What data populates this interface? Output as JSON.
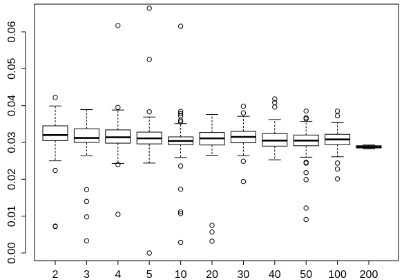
{
  "chart_data": {
    "type": "boxplot",
    "title": "",
    "xlabel": "",
    "ylabel": "",
    "categories": [
      "2",
      "3",
      "4",
      "5",
      "10",
      "20",
      "30",
      "40",
      "50",
      "100",
      "200"
    ],
    "ylim": [
      -0.002,
      0.068
    ],
    "yticks": [
      0.0,
      0.01,
      0.02,
      0.03,
      0.04,
      0.05,
      0.06
    ],
    "ytick_labels": [
      "0.00",
      "0.01",
      "0.02",
      "0.03",
      "0.04",
      "0.05",
      "0.06"
    ],
    "grid": false,
    "boxes": [
      {
        "category": "2",
        "whisker_low": 0.025,
        "q1": 0.0305,
        "median": 0.032,
        "q3": 0.0345,
        "whisker_high": 0.0399,
        "outliers": [
          0.0422,
          0.0224,
          0.0073,
          0.0072
        ]
      },
      {
        "category": "3",
        "whisker_low": 0.0264,
        "q1": 0.03,
        "median": 0.0312,
        "q3": 0.0337,
        "whisker_high": 0.0389,
        "outliers": [
          0.0172,
          0.014,
          0.0098,
          0.0033
        ]
      },
      {
        "category": "4",
        "whisker_low": 0.0243,
        "q1": 0.0298,
        "median": 0.0314,
        "q3": 0.0334,
        "whisker_high": 0.0388,
        "outliers": [
          0.0617,
          0.0395,
          0.024,
          0.0105
        ]
      },
      {
        "category": "5",
        "whisker_low": 0.0244,
        "q1": 0.0296,
        "median": 0.0311,
        "q3": 0.0328,
        "whisker_high": 0.0369,
        "outliers": [
          0.0664,
          0.0525,
          0.0383,
          0.0
        ]
      },
      {
        "category": "10",
        "whisker_low": 0.0259,
        "q1": 0.0294,
        "median": 0.0304,
        "q3": 0.0315,
        "whisker_high": 0.0351,
        "outliers": [
          0.0615,
          0.0384,
          0.0378,
          0.0372,
          0.036,
          0.0356,
          0.0236,
          0.0173,
          0.0112,
          0.0107,
          0.0029
        ]
      },
      {
        "category": "20",
        "whisker_low": 0.0265,
        "q1": 0.0293,
        "median": 0.0311,
        "q3": 0.0327,
        "whisker_high": 0.0376,
        "outliers": [
          0.0075,
          0.0057,
          0.0032
        ]
      },
      {
        "category": "30",
        "whisker_low": 0.0264,
        "q1": 0.0299,
        "median": 0.0315,
        "q3": 0.033,
        "whisker_high": 0.0371,
        "outliers": [
          0.0398,
          0.038,
          0.0249,
          0.0194
        ]
      },
      {
        "category": "40",
        "whisker_low": 0.0253,
        "q1": 0.029,
        "median": 0.0305,
        "q3": 0.0324,
        "whisker_high": 0.0362,
        "outliers": [
          0.0418,
          0.0408,
          0.0396
        ]
      },
      {
        "category": "50",
        "whisker_low": 0.026,
        "q1": 0.0291,
        "median": 0.0305,
        "q3": 0.032,
        "whisker_high": 0.0357,
        "outliers": [
          0.0385,
          0.0367,
          0.0364,
          0.0246,
          0.0244,
          0.0218,
          0.0199,
          0.0122,
          0.0091
        ]
      },
      {
        "category": "100",
        "whisker_low": 0.0261,
        "q1": 0.0294,
        "median": 0.0308,
        "q3": 0.0322,
        "whisker_high": 0.0354,
        "outliers": [
          0.0385,
          0.0372,
          0.0244,
          0.0228,
          0.0201
        ]
      },
      {
        "category": "200",
        "whisker_low": 0.0283,
        "q1": 0.0285,
        "median": 0.0288,
        "q3": 0.0291,
        "whisker_high": 0.0293,
        "outliers": []
      }
    ],
    "colors": {
      "stroke": "#000000",
      "box_fill": "#ffffff",
      "background": "#ffffff"
    }
  }
}
